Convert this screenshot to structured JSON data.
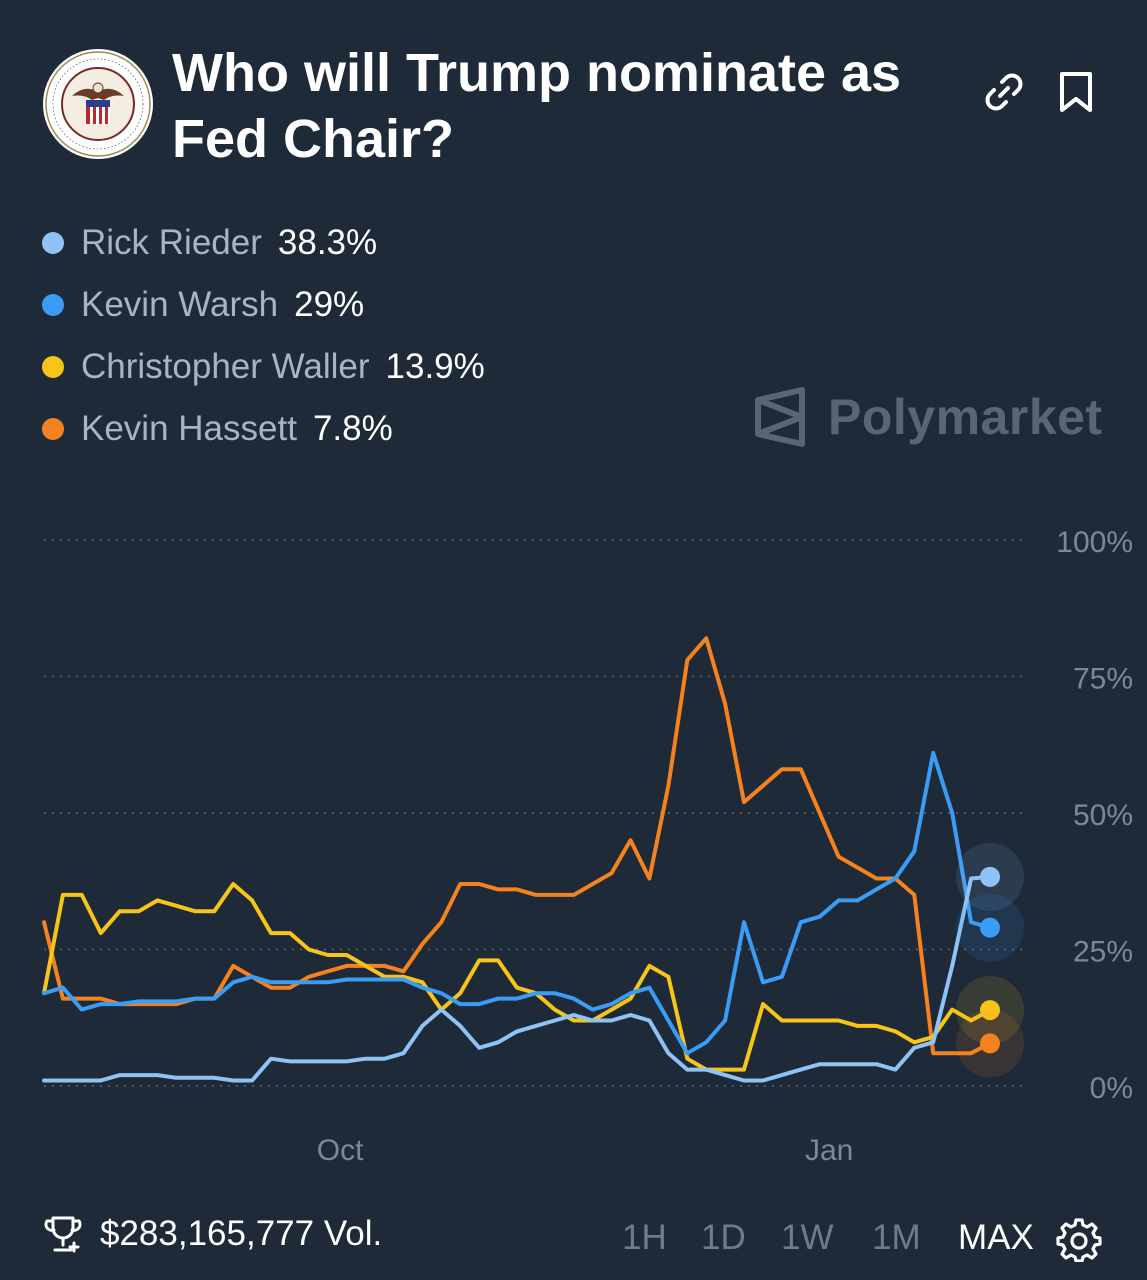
{
  "market": {
    "title": "Who will Trump nominate as Fed Chair?",
    "seal_text": "BOARD OF GOVERNORS OF THE FEDERAL RESERVE SYSTEM"
  },
  "icons": {
    "link": "link-icon",
    "bookmark": "bookmark-icon",
    "trophy": "trophy-icon",
    "settings": "gear-icon"
  },
  "legend": [
    {
      "name": "Rick Rieder",
      "value": "38.3%",
      "color": "#8fc3f5"
    },
    {
      "name": "Kevin Warsh",
      "value": "29%",
      "color": "#3b9cf5"
    },
    {
      "name": "Christopher Waller",
      "value": "13.9%",
      "color": "#f7c518"
    },
    {
      "name": "Kevin Hassett",
      "value": "7.8%",
      "color": "#f5821f"
    }
  ],
  "brand": "Polymarket",
  "chart_data": {
    "type": "line",
    "ylim": [
      0,
      100
    ],
    "yticks": [
      "100%",
      "75%",
      "50%",
      "25%",
      "0%"
    ],
    "yticks_values": [
      100,
      75,
      50,
      25,
      0
    ],
    "xticks": [
      "Oct",
      "Jan"
    ],
    "xticks_positions": [
      0.313,
      0.83
    ],
    "x": [
      0,
      0.02,
      0.04,
      0.06,
      0.08,
      0.1,
      0.12,
      0.14,
      0.16,
      0.18,
      0.2,
      0.22,
      0.24,
      0.26,
      0.28,
      0.3,
      0.32,
      0.34,
      0.36,
      0.38,
      0.4,
      0.42,
      0.44,
      0.46,
      0.48,
      0.5,
      0.52,
      0.54,
      0.56,
      0.58,
      0.6,
      0.62,
      0.64,
      0.66,
      0.68,
      0.7,
      0.72,
      0.74,
      0.76,
      0.78,
      0.8,
      0.82,
      0.84,
      0.86,
      0.88,
      0.9,
      0.92,
      0.94,
      0.96,
      0.98,
      1.0
    ],
    "series": [
      {
        "name": "Rick Rieder",
        "color": "#8fc3f5",
        "values": [
          1,
          1,
          1,
          1,
          2,
          2,
          2,
          1.5,
          1.5,
          1.5,
          1,
          1,
          5,
          4.5,
          4.5,
          4.5,
          4.5,
          5,
          5,
          6,
          11,
          14,
          11,
          7,
          8,
          10,
          11,
          12,
          13,
          12,
          12,
          13,
          12,
          6,
          3,
          3,
          2,
          1,
          1,
          2,
          3,
          4,
          4,
          4,
          4,
          3,
          7,
          8,
          22,
          38,
          38.3
        ]
      },
      {
        "name": "Kevin Warsh",
        "color": "#3b9cf5",
        "values": [
          17,
          18,
          14,
          15,
          15,
          15.5,
          15.5,
          15.5,
          16,
          16,
          19,
          20,
          19,
          19,
          19,
          19,
          19.5,
          19.5,
          19.5,
          19.5,
          18,
          17,
          15,
          15,
          16,
          16,
          17,
          17,
          16,
          14,
          15,
          17,
          18,
          12,
          6,
          8,
          12,
          30,
          19,
          20,
          30,
          31,
          34,
          34,
          36,
          38,
          43,
          61,
          50,
          30,
          29
        ]
      },
      {
        "name": "Christopher Waller",
        "color": "#f7c518",
        "values": [
          17,
          35,
          35,
          28,
          32,
          32,
          34,
          33,
          32,
          32,
          37,
          34,
          28,
          28,
          25,
          24,
          24,
          22,
          20,
          20,
          19,
          14,
          17,
          23,
          23,
          18,
          17,
          14,
          12,
          12,
          14,
          16,
          22,
          20,
          5,
          3,
          3,
          3,
          15,
          12,
          12,
          12,
          12,
          11,
          11,
          10,
          8,
          9,
          14,
          12,
          13.9
        ]
      },
      {
        "name": "Kevin Hassett",
        "color": "#f5821f",
        "values": [
          30,
          16,
          16,
          16,
          15,
          15,
          15,
          15,
          16,
          16,
          22,
          20,
          18,
          18,
          20,
          21,
          22,
          22,
          22,
          21,
          26,
          30,
          37,
          37,
          36,
          36,
          35,
          35,
          35,
          37,
          39,
          45,
          38,
          55,
          78,
          82,
          70,
          52,
          55,
          58,
          58,
          50,
          42,
          40,
          38,
          38,
          35,
          6,
          6,
          6,
          7.8
        ]
      }
    ]
  },
  "footer": {
    "volume": "$283,165,777 Vol.",
    "ranges": [
      "1H",
      "1D",
      "1W",
      "1M",
      "MAX"
    ],
    "active_range": "MAX"
  }
}
